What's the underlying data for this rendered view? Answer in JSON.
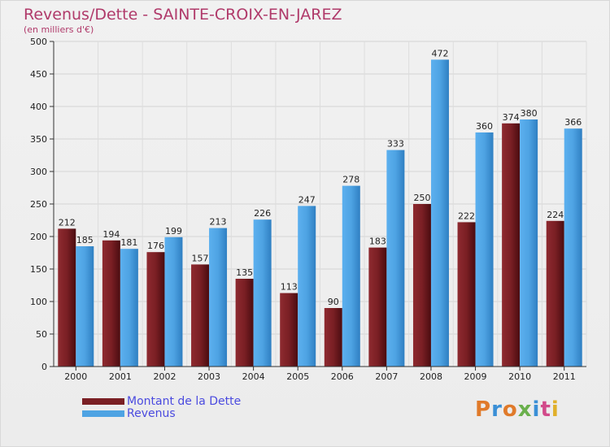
{
  "title": "Revenus/Dette - SAINTE-CROIX-EN-JAREZ",
  "subtitle": "(en milliers d'€)",
  "logo": "Proxiti",
  "colors": {
    "dette": "#7a1f24",
    "revenus": "#4ea3e3",
    "title": "#b03a6a",
    "legend_text": "#4a4adf"
  },
  "chart_data": {
    "type": "bar",
    "title": "Revenus/Dette - SAINTE-CROIX-EN-JAREZ",
    "ylabel": "(en milliers d'€)",
    "xlabel": "",
    "categories": [
      "2000",
      "2001",
      "2002",
      "2003",
      "2004",
      "2005",
      "2006",
      "2007",
      "2008",
      "2009",
      "2010",
      "2011"
    ],
    "series": [
      {
        "name": "Montant de la Dette",
        "values": [
          212,
          194,
          176,
          157,
          135,
          113,
          90,
          183,
          250,
          222,
          374,
          224
        ]
      },
      {
        "name": "Revenus",
        "values": [
          185,
          181,
          199,
          213,
          226,
          247,
          278,
          333,
          472,
          360,
          380,
          366
        ]
      }
    ],
    "ylim": [
      0,
      500
    ],
    "yticks": [
      0,
      50,
      100,
      150,
      200,
      250,
      300,
      350,
      400,
      450,
      500
    ],
    "grid": true,
    "legend_position": "bottom-left"
  }
}
